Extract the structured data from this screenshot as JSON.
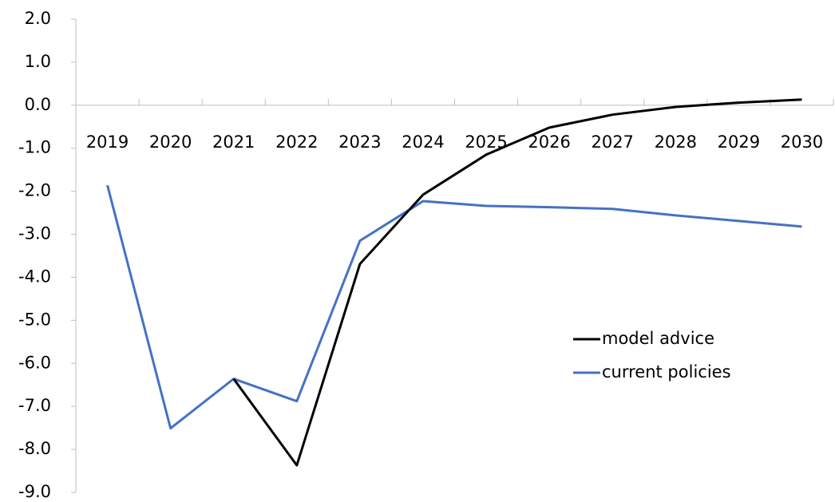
{
  "chart_data": {
    "type": "line",
    "categories": [
      "2019",
      "2020",
      "2021",
      "2022",
      "2023",
      "2024",
      "2025",
      "2026",
      "2027",
      "2028",
      "2029",
      "2030"
    ],
    "series": [
      {
        "name": "model advice",
        "color": "#000000",
        "values": [
          null,
          null,
          -6.36,
          -8.37,
          -3.69,
          -2.08,
          -1.15,
          -0.52,
          -0.22,
          -0.04,
          0.06,
          0.13
        ]
      },
      {
        "name": "current policies",
        "color": "#4472c4",
        "values": [
          -1.86,
          -7.51,
          -6.36,
          -6.88,
          -3.15,
          -2.23,
          -2.34,
          -2.37,
          -2.41,
          -2.56,
          -2.69,
          -2.82
        ]
      }
    ],
    "ylim": [
      -9,
      2
    ],
    "yticks": [
      {
        "value": 2,
        "label": "2.0"
      },
      {
        "value": 1,
        "label": "1.0"
      },
      {
        "value": 0,
        "label": "0.0"
      },
      {
        "value": -1,
        "label": "-1.0"
      },
      {
        "value": -2,
        "label": "-2.0"
      },
      {
        "value": -3,
        "label": "-3.0"
      },
      {
        "value": -4,
        "label": "-4.0"
      },
      {
        "value": -5,
        "label": "-5.0"
      },
      {
        "value": -6,
        "label": "-6.0"
      },
      {
        "value": -7,
        "label": "-7.0"
      },
      {
        "value": -8,
        "label": "-8.0"
      },
      {
        "value": -9,
        "label": "-9.0"
      }
    ],
    "grid": false,
    "legend": "right"
  }
}
